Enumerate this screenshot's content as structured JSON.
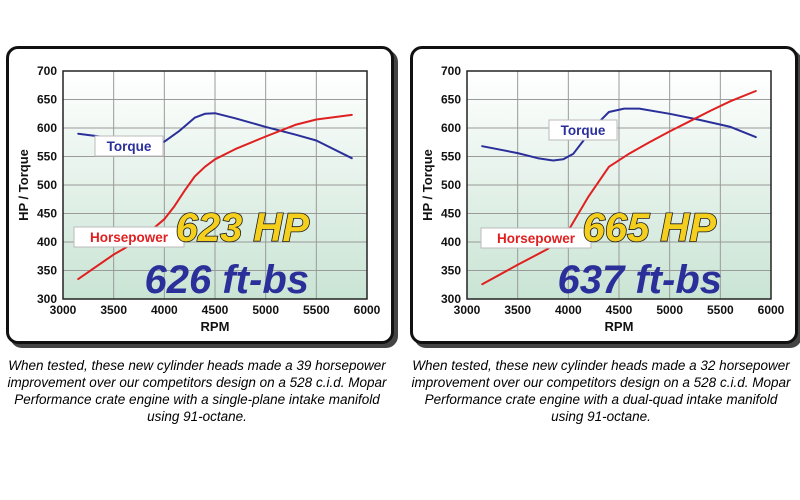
{
  "colors": {
    "torque": "#2a2f9a",
    "horsepower": "#e02020",
    "hp_text_fill": "#f5cf1e",
    "ft_text_fill": "#2a2f9a",
    "grid": "#9a9a9a",
    "plot_top": "#ffffff",
    "plot_bottom": "#c9e4d4"
  },
  "chart_data": [
    {
      "type": "line",
      "xlabel": "RPM",
      "ylabel": "HP / Torque",
      "xlim": [
        3000,
        6000
      ],
      "ylim": [
        300,
        700
      ],
      "x_ticks": [
        "3000",
        "3500",
        "4000",
        "4500",
        "5000",
        "5500",
        "6000"
      ],
      "y_ticks": [
        "300",
        "350",
        "400",
        "450",
        "500",
        "550",
        "600",
        "650",
        "700"
      ],
      "grid": true,
      "series": [
        {
          "name": "Torque",
          "x": [
            3150,
            3500,
            3800,
            4000,
            4150,
            4300,
            4400,
            4500,
            4700,
            5000,
            5300,
            5500,
            5850
          ],
          "y": [
            590,
            582,
            574,
            576,
            595,
            618,
            625,
            626,
            617,
            602,
            588,
            578,
            547
          ]
        },
        {
          "name": "Horsepower",
          "x": [
            3150,
            3500,
            3600,
            3800,
            4000,
            4100,
            4200,
            4300,
            4400,
            4500,
            4700,
            5000,
            5300,
            5500,
            5850
          ],
          "y": [
            335,
            378,
            388,
            410,
            440,
            463,
            490,
            515,
            532,
            545,
            563,
            585,
            606,
            615,
            623
          ]
        }
      ],
      "annotations": {
        "hp": "623 HP",
        "torque": "626 ft-bs"
      },
      "caption": "When tested, these new cylinder heads made a 39 horsepower improvement over our competitors design on a 528 c.i.d. Mopar Performance crate engine with a single-plane intake manifold using 91-octane."
    },
    {
      "type": "line",
      "xlabel": "RPM",
      "ylabel": "HP / Torque",
      "xlim": [
        3000,
        6000
      ],
      "ylim": [
        300,
        700
      ],
      "x_ticks": [
        "3000",
        "3500",
        "4000",
        "4500",
        "5000",
        "5500",
        "6000"
      ],
      "y_ticks": [
        "300",
        "350",
        "400",
        "450",
        "500",
        "550",
        "600",
        "650",
        "700"
      ],
      "grid": true,
      "series": [
        {
          "name": "Torque",
          "x": [
            3150,
            3500,
            3700,
            3850,
            3950,
            4050,
            4150,
            4300,
            4400,
            4550,
            4700,
            5000,
            5300,
            5600,
            5850
          ],
          "y": [
            568,
            556,
            547,
            543,
            545,
            555,
            578,
            610,
            628,
            634,
            634,
            625,
            614,
            602,
            584
          ]
        },
        {
          "name": "Horsepower",
          "x": [
            3150,
            3500,
            3800,
            4000,
            4200,
            4400,
            4600,
            4800,
            5000,
            5200,
            5400,
            5600,
            5850
          ],
          "y": [
            326,
            360,
            388,
            420,
            480,
            532,
            555,
            575,
            594,
            612,
            630,
            647,
            665
          ]
        }
      ],
      "annotations": {
        "hp": "665 HP",
        "torque": "637 ft-bs"
      },
      "caption": "When tested, these new cylinder heads made a 32 horsepower improvement over our competitors design on a 528 c.i.d. Mopar Performance crate engine with a dual-quad intake manifold using 91-octane."
    }
  ]
}
